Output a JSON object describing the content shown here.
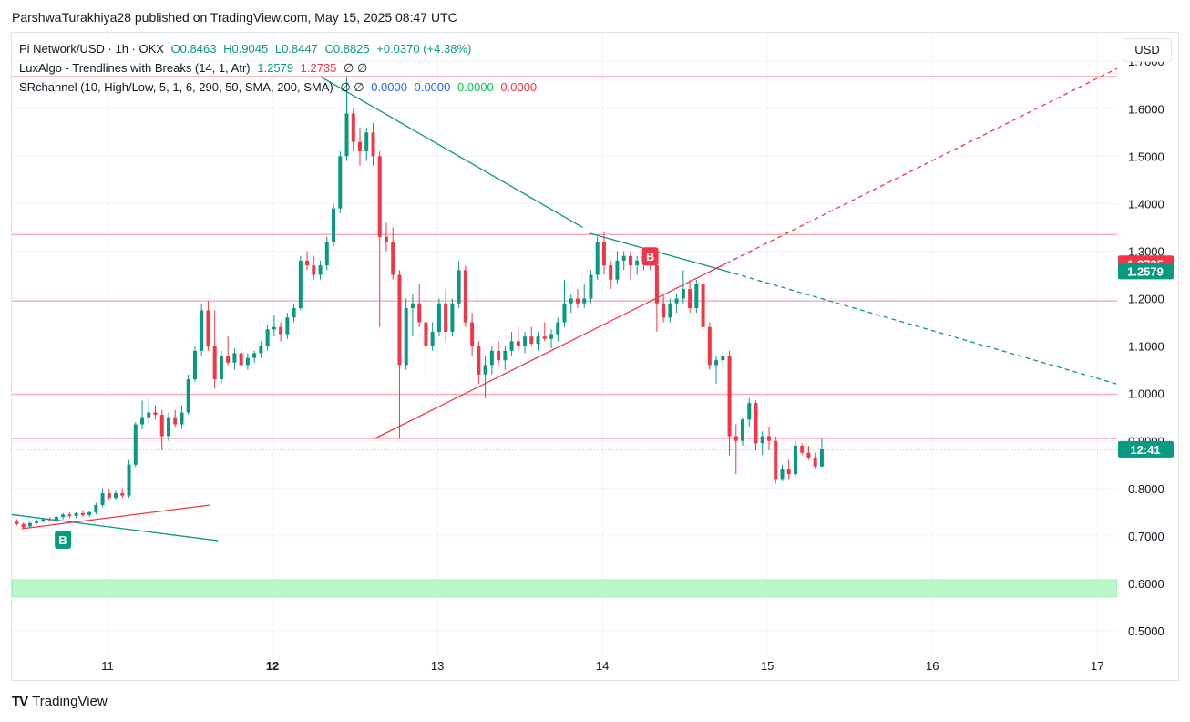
{
  "header": {
    "published": "ParshwaTurakhiya28 published on TradingView.com, May 15, 2025 08:47 UTC"
  },
  "legend": {
    "symbol": "Pi Network/USD · 1h · OKX",
    "o": "O0.8463",
    "h": "H0.9045",
    "l": "L0.8447",
    "c": "C0.8825",
    "chg": "+0.0370 (+4.38%)",
    "lux": "LuxAlgo - Trendlines with Breaks (14, 1, Atr)",
    "lux_v1": "1.2579",
    "lux_v2": "1.2735",
    "lux_n": "∅ ∅",
    "sr": "SRchannel (10, High/Low, 5, 1, 6, 290, 50, SMA, 200, SMA)",
    "sr_n": "∅ ∅",
    "sr_v1": "0.0000",
    "sr_v2": "0.0000",
    "sr_v3": "0.0000",
    "sr_v4": "0.0000"
  },
  "currency": "USD",
  "brand": "TradingView",
  "brand_logo": "TV",
  "colors": {
    "up": "#089981",
    "down": "#f23645",
    "sr_line": "#f7a1a8",
    "support_zone": "#b9f6ca",
    "grid": "#f0f3fa"
  },
  "chart_data": {
    "type": "candlestick",
    "ylim": [
      0.45,
      1.76
    ],
    "x_range_days": [
      10.42,
      17.12
    ],
    "y_ticks": [
      "0.5000",
      "0.6000",
      "0.7000",
      "0.8000",
      "0.9000",
      "1.0000",
      "1.1000",
      "1.2000",
      "1.3000",
      "1.4000",
      "1.5000",
      "1.6000",
      "1.7000"
    ],
    "x_ticks": [
      {
        "v": 11,
        "label": "11"
      },
      {
        "v": 12,
        "label": "12",
        "bold": true
      },
      {
        "v": 13,
        "label": "13"
      },
      {
        "v": 14,
        "label": "14"
      },
      {
        "v": 15,
        "label": "15"
      },
      {
        "v": 16,
        "label": "16"
      },
      {
        "v": 17,
        "label": "17"
      }
    ],
    "price_labels": [
      {
        "value": 1.2735,
        "text": "1.2735",
        "color": "#f23645"
      },
      {
        "value": 1.2579,
        "text": "1.2579",
        "color": "#089981"
      },
      {
        "value": 0.8825,
        "text": "12:41",
        "color": "#089981"
      }
    ],
    "sr_lines": [
      1.668,
      1.335,
      1.195,
      0.998,
      0.905
    ],
    "support_zone": [
      0.571,
      0.608
    ],
    "current_price": 0.8825,
    "trendlines": [
      {
        "from": [
          12.29,
          1.668
        ],
        "to": [
          13.88,
          1.35
        ],
        "color": "#089981",
        "dash": false
      },
      {
        "from": [
          13.92,
          1.338
        ],
        "to": [
          14.75,
          1.258
        ],
        "color": "#089981",
        "dash": false
      },
      {
        "from": [
          14.75,
          1.258
        ],
        "to": [
          17.12,
          1.02
        ],
        "color": "#089981",
        "dash": true
      },
      {
        "from": [
          12.62,
          0.905
        ],
        "to": [
          14.75,
          1.274
        ],
        "color": "#f23645",
        "dash": false
      },
      {
        "from": [
          14.75,
          1.274
        ],
        "to": [
          17.12,
          1.685
        ],
        "color": "#f23645",
        "dash": true
      },
      {
        "from": [
          10.42,
          0.745
        ],
        "to": [
          11.67,
          0.69
        ],
        "color": "#089981",
        "dash": false
      },
      {
        "from": [
          10.48,
          0.715
        ],
        "to": [
          11.62,
          0.765
        ],
        "color": "#f23645",
        "dash": false
      }
    ],
    "markers": [
      {
        "x": 10.73,
        "y": 0.692,
        "text": "B",
        "color": "#089981"
      },
      {
        "x": 14.29,
        "y": 1.289,
        "text": "B",
        "color": "#f23645"
      }
    ],
    "candles": [
      [
        10.45,
        0.73,
        0.735,
        0.722,
        0.725
      ],
      [
        10.49,
        0.725,
        0.728,
        0.715,
        0.718
      ],
      [
        10.53,
        0.72,
        0.73,
        0.718,
        0.727
      ],
      [
        10.57,
        0.727,
        0.735,
        0.724,
        0.732
      ],
      [
        10.61,
        0.732,
        0.738,
        0.728,
        0.735
      ],
      [
        10.65,
        0.735,
        0.74,
        0.73,
        0.733
      ],
      [
        10.69,
        0.733,
        0.742,
        0.73,
        0.74
      ],
      [
        10.73,
        0.74,
        0.748,
        0.735,
        0.745
      ],
      [
        10.77,
        0.745,
        0.75,
        0.738,
        0.742
      ],
      [
        10.81,
        0.742,
        0.75,
        0.738,
        0.748
      ],
      [
        10.85,
        0.748,
        0.755,
        0.74,
        0.744
      ],
      [
        10.89,
        0.744,
        0.752,
        0.74,
        0.75
      ],
      [
        10.93,
        0.75,
        0.77,
        0.745,
        0.765
      ],
      [
        10.97,
        0.765,
        0.8,
        0.76,
        0.79
      ],
      [
        11.01,
        0.79,
        0.8,
        0.775,
        0.78
      ],
      [
        11.05,
        0.78,
        0.795,
        0.775,
        0.79
      ],
      [
        11.09,
        0.79,
        0.8,
        0.78,
        0.785
      ],
      [
        11.13,
        0.785,
        0.86,
        0.78,
        0.85
      ],
      [
        11.17,
        0.85,
        0.94,
        0.845,
        0.935
      ],
      [
        11.21,
        0.935,
        0.985,
        0.925,
        0.95
      ],
      [
        11.25,
        0.95,
        0.99,
        0.935,
        0.96
      ],
      [
        11.29,
        0.96,
        0.975,
        0.945,
        0.955
      ],
      [
        11.33,
        0.955,
        0.965,
        0.88,
        0.91
      ],
      [
        11.37,
        0.91,
        0.96,
        0.9,
        0.95
      ],
      [
        11.41,
        0.95,
        0.965,
        0.93,
        0.935
      ],
      [
        11.45,
        0.935,
        0.975,
        0.925,
        0.96
      ],
      [
        11.49,
        0.96,
        1.04,
        0.955,
        1.03
      ],
      [
        11.53,
        1.03,
        1.1,
        1.025,
        1.09
      ],
      [
        11.57,
        1.09,
        1.19,
        1.08,
        1.175
      ],
      [
        11.61,
        1.175,
        1.195,
        1.09,
        1.1
      ],
      [
        11.65,
        1.1,
        1.175,
        1.01,
        1.03
      ],
      [
        11.69,
        1.03,
        1.09,
        1.02,
        1.08
      ],
      [
        11.73,
        1.08,
        1.12,
        1.06,
        1.065
      ],
      [
        11.77,
        1.065,
        1.095,
        1.05,
        1.085
      ],
      [
        11.81,
        1.085,
        1.1,
        1.055,
        1.06
      ],
      [
        11.85,
        1.06,
        1.085,
        1.05,
        1.075
      ],
      [
        11.89,
        1.075,
        1.09,
        1.065,
        1.085
      ],
      [
        11.93,
        1.085,
        1.11,
        1.075,
        1.1
      ],
      [
        11.97,
        1.1,
        1.145,
        1.09,
        1.135
      ],
      [
        12.01,
        1.135,
        1.165,
        1.12,
        1.14
      ],
      [
        12.05,
        1.14,
        1.15,
        1.11,
        1.125
      ],
      [
        12.09,
        1.125,
        1.17,
        1.115,
        1.16
      ],
      [
        12.13,
        1.16,
        1.19,
        1.15,
        1.18
      ],
      [
        12.17,
        1.18,
        1.29,
        1.175,
        1.28
      ],
      [
        12.21,
        1.28,
        1.3,
        1.26,
        1.27
      ],
      [
        12.25,
        1.27,
        1.29,
        1.24,
        1.25
      ],
      [
        12.29,
        1.25,
        1.28,
        1.24,
        1.27
      ],
      [
        12.33,
        1.27,
        1.33,
        1.26,
        1.32
      ],
      [
        12.37,
        1.32,
        1.4,
        1.31,
        1.39
      ],
      [
        12.41,
        1.39,
        1.51,
        1.38,
        1.5
      ],
      [
        12.45,
        1.5,
        1.668,
        1.49,
        1.59
      ],
      [
        12.49,
        1.59,
        1.6,
        1.51,
        1.53
      ],
      [
        12.53,
        1.53,
        1.56,
        1.48,
        1.51
      ],
      [
        12.57,
        1.51,
        1.56,
        1.49,
        1.55
      ],
      [
        12.61,
        1.55,
        1.57,
        1.48,
        1.5
      ],
      [
        12.65,
        1.5,
        1.51,
        1.14,
        1.33
      ],
      [
        12.69,
        1.33,
        1.36,
        1.3,
        1.32
      ],
      [
        12.73,
        1.32,
        1.35,
        1.24,
        1.25
      ],
      [
        12.77,
        1.25,
        1.26,
        0.905,
        1.06
      ],
      [
        12.81,
        1.06,
        1.2,
        1.05,
        1.18
      ],
      [
        12.85,
        1.18,
        1.21,
        1.12,
        1.19
      ],
      [
        12.89,
        1.19,
        1.23,
        1.14,
        1.15
      ],
      [
        12.93,
        1.15,
        1.23,
        1.03,
        1.1
      ],
      [
        12.97,
        1.1,
        1.15,
        1.09,
        1.13
      ],
      [
        13.01,
        1.13,
        1.2,
        1.12,
        1.19
      ],
      [
        13.05,
        1.19,
        1.22,
        1.11,
        1.13
      ],
      [
        13.09,
        1.13,
        1.2,
        1.12,
        1.19
      ],
      [
        13.13,
        1.19,
        1.28,
        1.18,
        1.26
      ],
      [
        13.17,
        1.26,
        1.27,
        1.14,
        1.15
      ],
      [
        13.21,
        1.15,
        1.17,
        1.08,
        1.1
      ],
      [
        13.25,
        1.1,
        1.11,
        1.02,
        1.04
      ],
      [
        13.29,
        1.04,
        1.08,
        0.99,
        1.06
      ],
      [
        13.33,
        1.06,
        1.1,
        1.04,
        1.09
      ],
      [
        13.37,
        1.09,
        1.11,
        1.06,
        1.07
      ],
      [
        13.41,
        1.07,
        1.1,
        1.05,
        1.09
      ],
      [
        13.45,
        1.09,
        1.13,
        1.08,
        1.11
      ],
      [
        13.49,
        1.11,
        1.14,
        1.09,
        1.1
      ],
      [
        13.53,
        1.1,
        1.13,
        1.085,
        1.12
      ],
      [
        13.57,
        1.12,
        1.14,
        1.1,
        1.105
      ],
      [
        13.61,
        1.105,
        1.13,
        1.09,
        1.12
      ],
      [
        13.65,
        1.12,
        1.15,
        1.11,
        1.115
      ],
      [
        13.69,
        1.115,
        1.135,
        1.095,
        1.125
      ],
      [
        13.73,
        1.125,
        1.16,
        1.11,
        1.15
      ],
      [
        13.77,
        1.15,
        1.24,
        1.14,
        1.19
      ],
      [
        13.81,
        1.19,
        1.21,
        1.17,
        1.2
      ],
      [
        13.85,
        1.2,
        1.22,
        1.18,
        1.19
      ],
      [
        13.89,
        1.19,
        1.23,
        1.18,
        1.2
      ],
      [
        13.93,
        1.2,
        1.26,
        1.19,
        1.25
      ],
      [
        13.97,
        1.25,
        1.33,
        1.24,
        1.32
      ],
      [
        14.01,
        1.32,
        1.34,
        1.25,
        1.27
      ],
      [
        14.05,
        1.27,
        1.28,
        1.22,
        1.24
      ],
      [
        14.09,
        1.24,
        1.3,
        1.23,
        1.28
      ],
      [
        14.13,
        1.28,
        1.3,
        1.26,
        1.29
      ],
      [
        14.17,
        1.29,
        1.3,
        1.24,
        1.27
      ],
      [
        14.21,
        1.27,
        1.29,
        1.25,
        1.28
      ],
      [
        14.25,
        1.28,
        1.3,
        1.26,
        1.29
      ],
      [
        14.29,
        1.29,
        1.3,
        1.26,
        1.27
      ],
      [
        14.33,
        1.27,
        1.28,
        1.13,
        1.19
      ],
      [
        14.37,
        1.19,
        1.21,
        1.15,
        1.16
      ],
      [
        14.41,
        1.16,
        1.2,
        1.15,
        1.19
      ],
      [
        14.45,
        1.19,
        1.21,
        1.17,
        1.2
      ],
      [
        14.49,
        1.2,
        1.26,
        1.19,
        1.22
      ],
      [
        14.53,
        1.22,
        1.24,
        1.17,
        1.18
      ],
      [
        14.57,
        1.18,
        1.24,
        1.17,
        1.23
      ],
      [
        14.61,
        1.23,
        1.235,
        1.12,
        1.14
      ],
      [
        14.65,
        1.14,
        1.15,
        1.05,
        1.06
      ],
      [
        14.69,
        1.06,
        1.08,
        1.02,
        1.07
      ],
      [
        14.73,
        1.07,
        1.09,
        1.05,
        1.08
      ],
      [
        14.77,
        1.08,
        1.09,
        0.87,
        0.91
      ],
      [
        14.81,
        0.91,
        0.935,
        0.83,
        0.9
      ],
      [
        14.85,
        0.9,
        0.95,
        0.89,
        0.945
      ],
      [
        14.89,
        0.945,
        0.99,
        0.93,
        0.98
      ],
      [
        14.93,
        0.98,
        0.985,
        0.88,
        0.895
      ],
      [
        14.97,
        0.895,
        0.92,
        0.87,
        0.91
      ],
      [
        15.01,
        0.91,
        0.93,
        0.88,
        0.9
      ],
      [
        15.05,
        0.9,
        0.91,
        0.81,
        0.82
      ],
      [
        15.09,
        0.82,
        0.85,
        0.815,
        0.84
      ],
      [
        15.13,
        0.84,
        0.86,
        0.82,
        0.83
      ],
      [
        15.17,
        0.83,
        0.9,
        0.825,
        0.89
      ],
      [
        15.21,
        0.89,
        0.895,
        0.87,
        0.875
      ],
      [
        15.25,
        0.875,
        0.89,
        0.86,
        0.865
      ],
      [
        15.29,
        0.865,
        0.875,
        0.84,
        0.846
      ],
      [
        15.33,
        0.8463,
        0.9045,
        0.8447,
        0.8825
      ]
    ]
  }
}
